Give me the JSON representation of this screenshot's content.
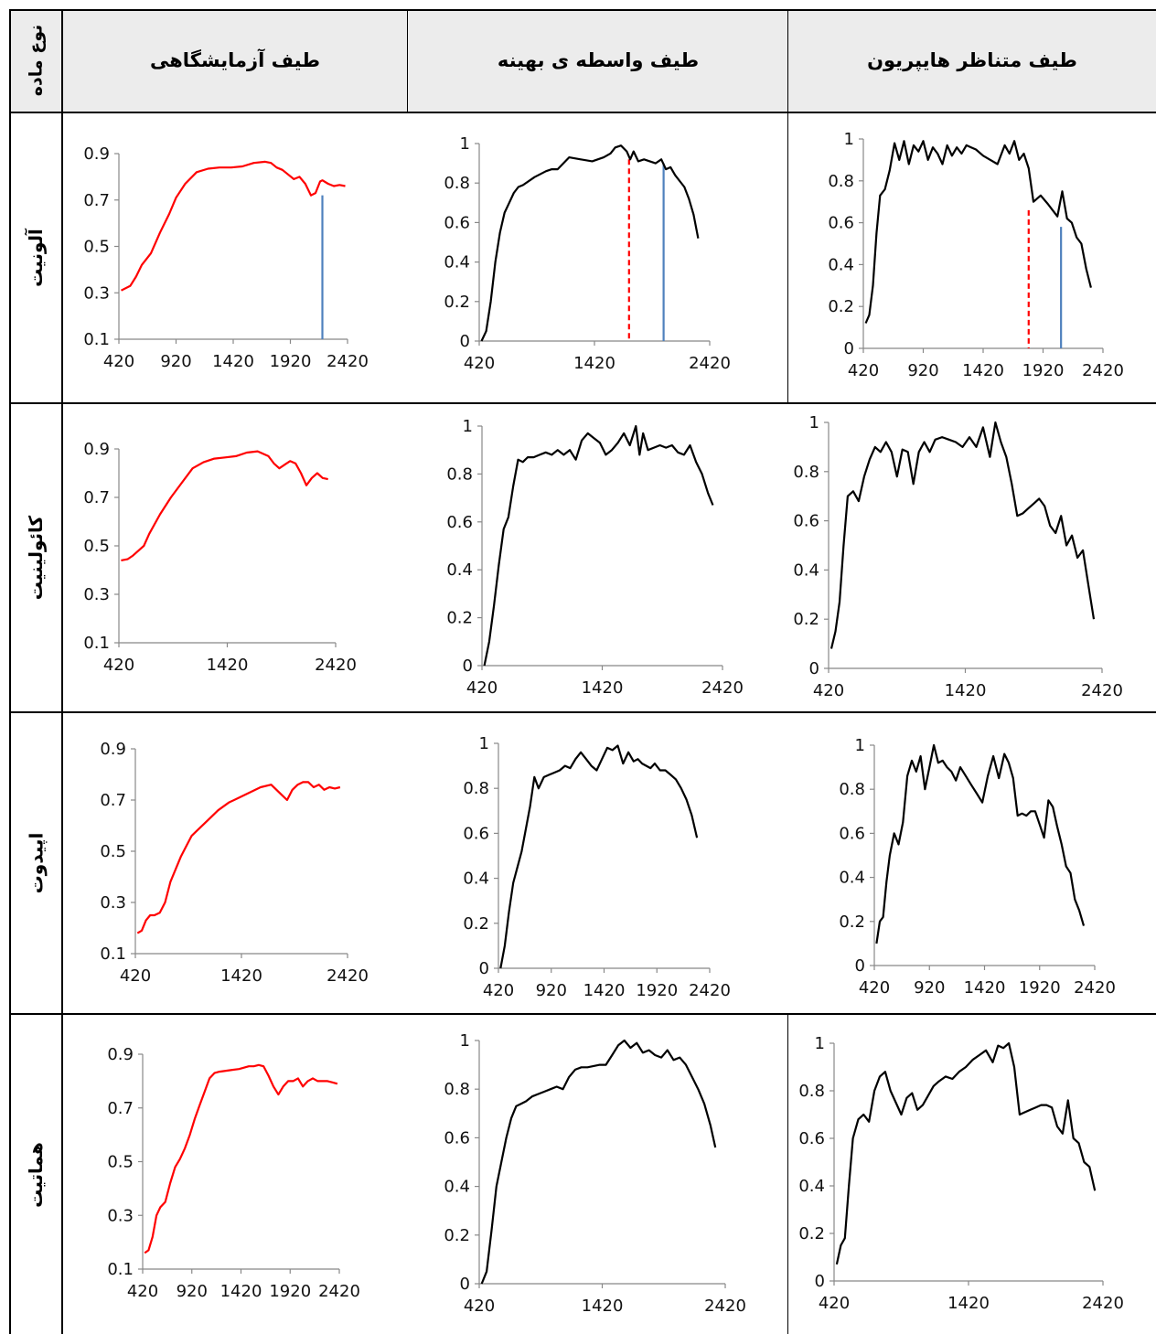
{
  "headers": {
    "material_type": "نوع ماده",
    "lab": "طیف آزمایشگاهی",
    "intermediate": "طیف واسطه ی بهینه",
    "hyperion": "طیف متناظر هایپریون"
  },
  "rows": [
    {
      "name": "آلونیت"
    },
    {
      "name": "کائولینیت"
    },
    {
      "name": "اپیدوت"
    },
    {
      "name": "هماتیت"
    }
  ],
  "colors": {
    "lab": "#ff0000",
    "other": "#000000",
    "blue": "#4f81bd",
    "red_dashed": "#ff0000",
    "header_bg": "#ececec"
  },
  "chart_data": [
    {
      "id": "r0-lab",
      "type": "line",
      "color": "#ff0000",
      "xlim": [
        420,
        2420
      ],
      "ylim": [
        0.1,
        0.9
      ],
      "xticks": [
        "420",
        "920",
        "1420",
        "1920",
        "2420"
      ],
      "yticks": [
        "0.1",
        "0.3",
        "0.5",
        "0.7",
        "0.9"
      ],
      "vlines": [
        {
          "x": 2200,
          "y0": 0.1,
          "y1": 0.72,
          "color": "#4f81bd",
          "style": "solid"
        }
      ],
      "x": [
        440,
        520,
        570,
        620,
        700,
        780,
        860,
        920,
        1000,
        1100,
        1200,
        1300,
        1400,
        1500,
        1600,
        1700,
        1750,
        1800,
        1850,
        1900,
        1950,
        2000,
        2050,
        2100,
        2140,
        2180,
        2200,
        2250,
        2300,
        2350,
        2400
      ],
      "y": [
        0.31,
        0.33,
        0.37,
        0.42,
        0.47,
        0.56,
        0.64,
        0.71,
        0.77,
        0.82,
        0.835,
        0.84,
        0.84,
        0.845,
        0.86,
        0.865,
        0.86,
        0.84,
        0.83,
        0.81,
        0.79,
        0.8,
        0.77,
        0.72,
        0.73,
        0.78,
        0.785,
        0.77,
        0.76,
        0.765,
        0.76
      ]
    },
    {
      "id": "r0-mid",
      "type": "line",
      "color": "#000000",
      "xlim": [
        420,
        2420
      ],
      "ylim": [
        0,
        1
      ],
      "xticks": [
        "420",
        "1420",
        "2420"
      ],
      "yticks": [
        "0",
        "0.2",
        "0.4",
        "0.6",
        "0.8",
        "1"
      ],
      "vlines": [
        {
          "x": 1720,
          "y0": 0,
          "y1": 0.92,
          "color": "#ff0000",
          "style": "dashed"
        },
        {
          "x": 2020,
          "y0": 0,
          "y1": 0.9,
          "color": "#4f81bd",
          "style": "solid"
        }
      ],
      "x": [
        440,
        480,
        520,
        560,
        600,
        640,
        680,
        720,
        760,
        800,
        900,
        1000,
        1050,
        1100,
        1200,
        1300,
        1400,
        1500,
        1560,
        1600,
        1650,
        1700,
        1730,
        1760,
        1800,
        1850,
        1900,
        1950,
        2000,
        2040,
        2080,
        2120,
        2160,
        2200,
        2240,
        2280,
        2320
      ],
      "y": [
        0,
        0.05,
        0.2,
        0.4,
        0.55,
        0.65,
        0.7,
        0.75,
        0.78,
        0.79,
        0.83,
        0.86,
        0.87,
        0.87,
        0.93,
        0.92,
        0.91,
        0.93,
        0.95,
        0.98,
        0.99,
        0.96,
        0.92,
        0.96,
        0.91,
        0.92,
        0.91,
        0.9,
        0.92,
        0.87,
        0.88,
        0.84,
        0.81,
        0.78,
        0.72,
        0.64,
        0.52
      ]
    },
    {
      "id": "r0-hyp",
      "type": "line",
      "color": "#000000",
      "xlim": [
        420,
        2420
      ],
      "ylim": [
        0,
        1
      ],
      "xticks": [
        "420",
        "920",
        "1420",
        "1920",
        "2420"
      ],
      "yticks": [
        "0",
        "0.2",
        "0.4",
        "0.6",
        "0.8",
        "1"
      ],
      "vlines": [
        {
          "x": 1800,
          "y0": 0,
          "y1": 0.66,
          "color": "#ff0000",
          "style": "dashed"
        },
        {
          "x": 2070,
          "y0": 0,
          "y1": 0.58,
          "color": "#4f81bd",
          "style": "solid"
        }
      ],
      "x": [
        440,
        470,
        500,
        530,
        560,
        600,
        640,
        680,
        720,
        760,
        800,
        840,
        880,
        920,
        960,
        1000,
        1040,
        1080,
        1120,
        1160,
        1200,
        1240,
        1280,
        1320,
        1360,
        1420,
        1480,
        1540,
        1600,
        1640,
        1680,
        1720,
        1760,
        1800,
        1840,
        1900,
        1960,
        2000,
        2040,
        2080,
        2120,
        2160,
        2200,
        2240,
        2280,
        2320
      ],
      "y": [
        0.12,
        0.16,
        0.3,
        0.55,
        0.73,
        0.76,
        0.85,
        0.98,
        0.9,
        0.99,
        0.88,
        0.97,
        0.94,
        0.99,
        0.9,
        0.96,
        0.93,
        0.88,
        0.97,
        0.92,
        0.96,
        0.93,
        0.97,
        0.96,
        0.95,
        0.92,
        0.9,
        0.88,
        0.97,
        0.93,
        0.99,
        0.9,
        0.93,
        0.86,
        0.7,
        0.73,
        0.69,
        0.66,
        0.63,
        0.75,
        0.62,
        0.6,
        0.53,
        0.5,
        0.38,
        0.29
      ]
    },
    {
      "id": "r1-lab",
      "type": "line",
      "color": "#ff0000",
      "xlim": [
        420,
        2420
      ],
      "ylim": [
        0.1,
        0.9
      ],
      "xticks": [
        "420",
        "1420",
        "2420"
      ],
      "yticks": [
        "0.1",
        "0.3",
        "0.5",
        "0.7",
        "0.9"
      ],
      "vlines": [],
      "x": [
        440,
        500,
        550,
        600,
        650,
        700,
        800,
        900,
        1000,
        1100,
        1200,
        1300,
        1400,
        1500,
        1600,
        1700,
        1800,
        1850,
        1900,
        1950,
        2000,
        2050,
        2100,
        2150,
        2200,
        2250,
        2300,
        2350
      ],
      "y": [
        0.44,
        0.445,
        0.46,
        0.48,
        0.5,
        0.55,
        0.63,
        0.7,
        0.76,
        0.82,
        0.845,
        0.86,
        0.865,
        0.87,
        0.885,
        0.89,
        0.87,
        0.84,
        0.82,
        0.835,
        0.85,
        0.84,
        0.8,
        0.75,
        0.78,
        0.8,
        0.78,
        0.775
      ]
    },
    {
      "id": "r1-mid",
      "type": "line",
      "color": "#000000",
      "xlim": [
        420,
        2420
      ],
      "ylim": [
        0,
        1
      ],
      "xticks": [
        "420",
        "1420",
        "2420"
      ],
      "yticks": [
        "0",
        "0.2",
        "0.4",
        "0.6",
        "0.8",
        "1"
      ],
      "vlines": [],
      "x": [
        440,
        480,
        520,
        560,
        600,
        640,
        680,
        720,
        760,
        800,
        850,
        900,
        950,
        1000,
        1050,
        1100,
        1150,
        1200,
        1250,
        1300,
        1350,
        1400,
        1450,
        1500,
        1550,
        1600,
        1650,
        1700,
        1730,
        1760,
        1800,
        1850,
        1900,
        1950,
        2000,
        2050,
        2100,
        2150,
        2200,
        2250,
        2300,
        2340
      ],
      "y": [
        0,
        0.1,
        0.25,
        0.42,
        0.57,
        0.62,
        0.75,
        0.86,
        0.85,
        0.87,
        0.87,
        0.88,
        0.89,
        0.88,
        0.9,
        0.88,
        0.9,
        0.86,
        0.94,
        0.97,
        0.95,
        0.93,
        0.88,
        0.9,
        0.93,
        0.97,
        0.92,
        1.0,
        0.88,
        0.97,
        0.9,
        0.91,
        0.92,
        0.91,
        0.92,
        0.89,
        0.88,
        0.92,
        0.85,
        0.8,
        0.72,
        0.67
      ]
    },
    {
      "id": "r1-hyp",
      "type": "line",
      "color": "#000000",
      "xlim": [
        420,
        2420
      ],
      "ylim": [
        0,
        1
      ],
      "xticks": [
        "420",
        "1420",
        "2420"
      ],
      "yticks": [
        "0",
        "0.2",
        "0.4",
        "0.6",
        "0.8",
        "1"
      ],
      "vlines": [],
      "x": [
        440,
        470,
        500,
        530,
        560,
        600,
        640,
        680,
        720,
        760,
        800,
        840,
        880,
        920,
        960,
        1000,
        1040,
        1080,
        1120,
        1160,
        1200,
        1250,
        1300,
        1350,
        1400,
        1450,
        1500,
        1550,
        1600,
        1640,
        1680,
        1720,
        1760,
        1800,
        1840,
        1880,
        1920,
        1960,
        2000,
        2040,
        2080,
        2120,
        2160,
        2200,
        2240,
        2280,
        2320,
        2360
      ],
      "y": [
        0.08,
        0.15,
        0.27,
        0.5,
        0.7,
        0.72,
        0.68,
        0.78,
        0.85,
        0.9,
        0.88,
        0.92,
        0.88,
        0.78,
        0.89,
        0.88,
        0.75,
        0.88,
        0.92,
        0.88,
        0.93,
        0.94,
        0.93,
        0.92,
        0.9,
        0.94,
        0.9,
        0.98,
        0.86,
        1.0,
        0.92,
        0.86,
        0.75,
        0.62,
        0.63,
        0.65,
        0.67,
        0.69,
        0.66,
        0.58,
        0.55,
        0.62,
        0.5,
        0.54,
        0.45,
        0.48,
        0.34,
        0.2
      ]
    },
    {
      "id": "r2-lab",
      "type": "line",
      "color": "#ff0000",
      "xlim": [
        420,
        2420
      ],
      "ylim": [
        0.1,
        0.9
      ],
      "xticks": [
        "420",
        "1420",
        "2420"
      ],
      "yticks": [
        "0.1",
        "0.3",
        "0.5",
        "0.7",
        "0.9"
      ],
      "vlines": [],
      "x": [
        440,
        480,
        520,
        560,
        600,
        650,
        700,
        750,
        800,
        850,
        900,
        950,
        1000,
        1100,
        1200,
        1300,
        1400,
        1500,
        1600,
        1700,
        1800,
        1850,
        1900,
        1950,
        2000,
        2050,
        2100,
        2150,
        2200,
        2250,
        2300,
        2350
      ],
      "y": [
        0.18,
        0.19,
        0.23,
        0.25,
        0.25,
        0.26,
        0.3,
        0.38,
        0.43,
        0.48,
        0.52,
        0.56,
        0.58,
        0.62,
        0.66,
        0.69,
        0.71,
        0.73,
        0.75,
        0.76,
        0.72,
        0.7,
        0.74,
        0.76,
        0.77,
        0.77,
        0.75,
        0.76,
        0.74,
        0.75,
        0.745,
        0.75
      ]
    },
    {
      "id": "r2-mid",
      "type": "line",
      "color": "#000000",
      "xlim": [
        420,
        2420
      ],
      "ylim": [
        0,
        1
      ],
      "xticks": [
        "420",
        "920",
        "1420",
        "1920",
        "2420"
      ],
      "yticks": [
        "0",
        "0.2",
        "0.4",
        "0.6",
        "0.8",
        "1"
      ],
      "vlines": [],
      "x": [
        440,
        480,
        520,
        560,
        600,
        640,
        680,
        720,
        760,
        800,
        850,
        900,
        950,
        1000,
        1050,
        1100,
        1150,
        1200,
        1250,
        1300,
        1350,
        1400,
        1450,
        1500,
        1550,
        1600,
        1650,
        1700,
        1740,
        1780,
        1820,
        1860,
        1900,
        1950,
        2000,
        2050,
        2100,
        2150,
        2200,
        2250,
        2300
      ],
      "y": [
        0,
        0.1,
        0.25,
        0.38,
        0.45,
        0.52,
        0.62,
        0.72,
        0.85,
        0.8,
        0.85,
        0.86,
        0.87,
        0.88,
        0.9,
        0.89,
        0.93,
        0.96,
        0.93,
        0.9,
        0.88,
        0.93,
        0.98,
        0.97,
        0.99,
        0.91,
        0.96,
        0.92,
        0.93,
        0.91,
        0.9,
        0.89,
        0.91,
        0.88,
        0.88,
        0.86,
        0.84,
        0.8,
        0.75,
        0.68,
        0.58
      ]
    },
    {
      "id": "r2-hyp",
      "type": "line",
      "color": "#000000",
      "xlim": [
        420,
        2420
      ],
      "ylim": [
        0,
        1
      ],
      "xticks": [
        "420",
        "920",
        "1420",
        "1920",
        "2420"
      ],
      "yticks": [
        "0",
        "0.2",
        "0.4",
        "0.6",
        "0.8",
        "1"
      ],
      "vlines": [],
      "x": [
        440,
        470,
        500,
        530,
        560,
        600,
        640,
        680,
        720,
        760,
        800,
        840,
        880,
        920,
        960,
        1000,
        1040,
        1080,
        1120,
        1160,
        1200,
        1250,
        1300,
        1350,
        1400,
        1450,
        1500,
        1550,
        1600,
        1640,
        1680,
        1720,
        1760,
        1800,
        1840,
        1880,
        1920,
        1960,
        2000,
        2040,
        2080,
        2120,
        2160,
        2200,
        2240,
        2280,
        2320
      ],
      "y": [
        0.1,
        0.2,
        0.22,
        0.38,
        0.5,
        0.6,
        0.55,
        0.65,
        0.86,
        0.93,
        0.88,
        0.95,
        0.8,
        0.9,
        1.0,
        0.92,
        0.93,
        0.9,
        0.88,
        0.84,
        0.9,
        0.86,
        0.82,
        0.78,
        0.74,
        0.86,
        0.95,
        0.85,
        0.96,
        0.92,
        0.85,
        0.68,
        0.69,
        0.68,
        0.7,
        0.7,
        0.64,
        0.58,
        0.75,
        0.72,
        0.63,
        0.55,
        0.45,
        0.42,
        0.3,
        0.25,
        0.18
      ]
    },
    {
      "id": "r3-lab",
      "type": "line",
      "color": "#ff0000",
      "xlim": [
        420,
        2420
      ],
      "ylim": [
        0.1,
        0.9
      ],
      "xticks": [
        "420",
        "920",
        "1420",
        "1920",
        "2420"
      ],
      "yticks": [
        "0.1",
        "0.3",
        "0.5",
        "0.7",
        "0.9"
      ],
      "vlines": [],
      "x": [
        440,
        480,
        520,
        560,
        600,
        650,
        700,
        750,
        800,
        850,
        900,
        950,
        1000,
        1050,
        1100,
        1150,
        1200,
        1300,
        1400,
        1500,
        1550,
        1600,
        1650,
        1700,
        1750,
        1800,
        1850,
        1900,
        1950,
        2000,
        2050,
        2100,
        2150,
        2200,
        2250,
        2300,
        2350,
        2400
      ],
      "y": [
        0.16,
        0.17,
        0.22,
        0.3,
        0.33,
        0.35,
        0.42,
        0.48,
        0.51,
        0.55,
        0.6,
        0.66,
        0.71,
        0.76,
        0.81,
        0.83,
        0.835,
        0.84,
        0.845,
        0.855,
        0.855,
        0.86,
        0.855,
        0.82,
        0.78,
        0.75,
        0.78,
        0.8,
        0.8,
        0.81,
        0.78,
        0.8,
        0.81,
        0.8,
        0.8,
        0.8,
        0.795,
        0.79
      ]
    },
    {
      "id": "r3-mid",
      "type": "line",
      "color": "#000000",
      "xlim": [
        420,
        2420
      ],
      "ylim": [
        0,
        1
      ],
      "xticks": [
        "420",
        "1420",
        "2420"
      ],
      "yticks": [
        "0",
        "0.2",
        "0.4",
        "0.6",
        "0.8",
        "1"
      ],
      "vlines": [],
      "x": [
        440,
        480,
        520,
        560,
        600,
        640,
        680,
        720,
        760,
        800,
        850,
        900,
        950,
        1000,
        1050,
        1100,
        1150,
        1200,
        1250,
        1300,
        1350,
        1400,
        1450,
        1500,
        1550,
        1600,
        1650,
        1700,
        1750,
        1800,
        1850,
        1900,
        1950,
        2000,
        2050,
        2100,
        2150,
        2200,
        2250,
        2300,
        2340
      ],
      "y": [
        0,
        0.05,
        0.22,
        0.4,
        0.5,
        0.6,
        0.68,
        0.73,
        0.74,
        0.75,
        0.77,
        0.78,
        0.79,
        0.8,
        0.81,
        0.8,
        0.85,
        0.88,
        0.89,
        0.89,
        0.895,
        0.9,
        0.9,
        0.94,
        0.98,
        1.0,
        0.97,
        0.99,
        0.95,
        0.96,
        0.94,
        0.93,
        0.96,
        0.92,
        0.93,
        0.9,
        0.85,
        0.8,
        0.74,
        0.65,
        0.56
      ]
    },
    {
      "id": "r3-hyp",
      "type": "line",
      "color": "#000000",
      "xlim": [
        420,
        2420
      ],
      "ylim": [
        0,
        1
      ],
      "xticks": [
        "420",
        "1420",
        "2420"
      ],
      "yticks": [
        "0",
        "0.2",
        "0.4",
        "0.6",
        "0.8",
        "1"
      ],
      "vlines": [],
      "x": [
        440,
        470,
        500,
        530,
        560,
        600,
        640,
        680,
        720,
        760,
        800,
        840,
        880,
        920,
        960,
        1000,
        1040,
        1080,
        1120,
        1160,
        1200,
        1250,
        1300,
        1350,
        1400,
        1450,
        1500,
        1550,
        1600,
        1640,
        1680,
        1720,
        1760,
        1800,
        1840,
        1880,
        1920,
        1960,
        2000,
        2040,
        2080,
        2120,
        2160,
        2200,
        2240,
        2280,
        2320,
        2360
      ],
      "y": [
        0.07,
        0.15,
        0.18,
        0.4,
        0.6,
        0.68,
        0.7,
        0.67,
        0.8,
        0.86,
        0.88,
        0.8,
        0.75,
        0.7,
        0.77,
        0.79,
        0.72,
        0.74,
        0.78,
        0.82,
        0.84,
        0.86,
        0.85,
        0.88,
        0.9,
        0.93,
        0.95,
        0.97,
        0.92,
        0.99,
        0.98,
        1.0,
        0.9,
        0.7,
        0.71,
        0.72,
        0.73,
        0.74,
        0.74,
        0.73,
        0.65,
        0.62,
        0.76,
        0.6,
        0.58,
        0.5,
        0.48,
        0.38
      ]
    }
  ]
}
